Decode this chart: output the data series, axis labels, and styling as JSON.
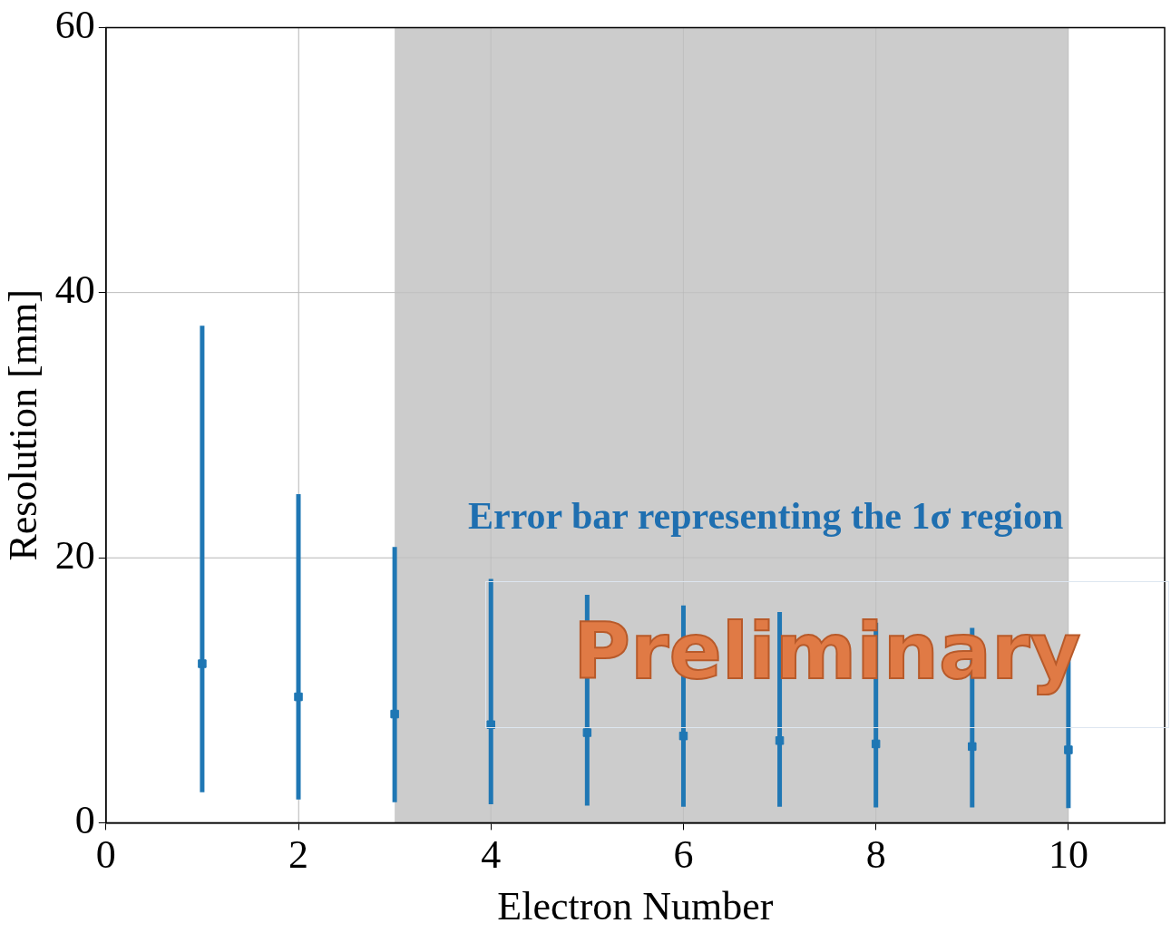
{
  "chart_data": {
    "type": "scatter",
    "xlabel": "Electron Number",
    "ylabel": "Resolution [mm]",
    "x": [
      1,
      2,
      3,
      4,
      5,
      6,
      7,
      8,
      9,
      10
    ],
    "series": [
      {
        "color": "#1f77b4",
        "values": [
          12.0,
          9.5,
          8.2,
          7.4,
          6.8,
          6.55,
          6.2,
          5.95,
          5.75,
          5.5
        ],
        "errors": [
          [
            2.3,
            37.5
          ],
          [
            1.75,
            24.8
          ],
          [
            1.55,
            20.8
          ],
          [
            1.4,
            18.4
          ],
          [
            1.3,
            17.2
          ],
          [
            1.2,
            16.4
          ],
          [
            1.2,
            15.9
          ],
          [
            1.15,
            15.1
          ],
          [
            1.15,
            14.7
          ],
          [
            1.1,
            14.0
          ]
        ]
      }
    ],
    "xlim": [
      0,
      11
    ],
    "xticks": [
      0,
      2,
      4,
      6,
      8,
      10
    ],
    "ylim": [
      0,
      60
    ],
    "yticks": [
      0,
      20,
      40,
      60
    ],
    "grid": true,
    "legend": false,
    "marker": "square",
    "bands": [
      {
        "axis": "x",
        "from": 3,
        "to": 10,
        "color": "#cccccc"
      }
    ],
    "annotations": [
      "Error bar representing the 1σ region",
      "Preliminary"
    ]
  }
}
